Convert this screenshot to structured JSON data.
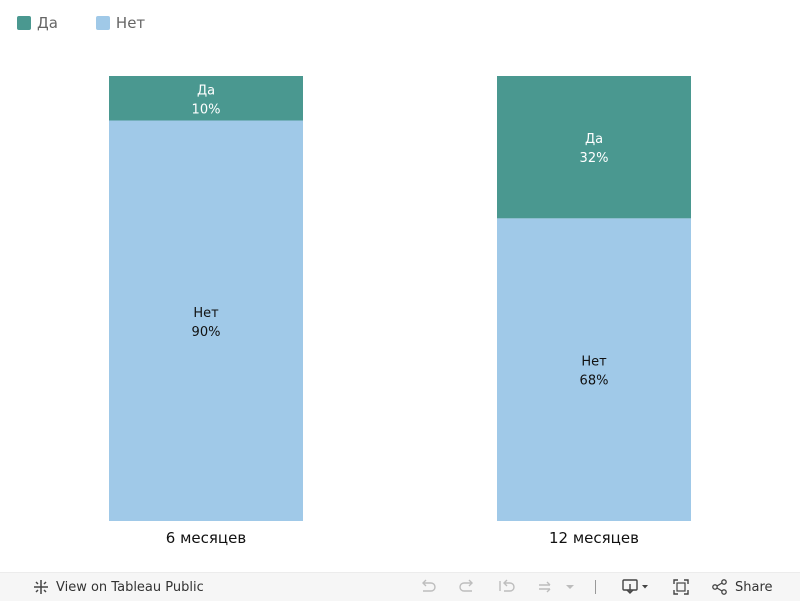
{
  "legend": {
    "items": [
      {
        "label": "Да",
        "color": "#4a9890"
      },
      {
        "label": "Нет",
        "color": "#a0c9e8"
      }
    ]
  },
  "chart_data": {
    "type": "bar",
    "stacked": true,
    "percent": true,
    "categories": [
      "6 месяцев",
      "12 месяцев"
    ],
    "series": [
      {
        "name": "Да",
        "values": [
          10,
          32
        ],
        "color": "#4a9890",
        "label_color": "#ffffff"
      },
      {
        "name": "Нет",
        "values": [
          90,
          68
        ],
        "color": "#a0c9e8",
        "label_color": "#111111"
      }
    ],
    "ylim": [
      0,
      100
    ],
    "grid": false,
    "legend_position": "top-left"
  },
  "toolbar": {
    "view_label": "View on Tableau Public",
    "share_label": "Share",
    "icons": [
      "tableau-logo-icon",
      "undo-icon",
      "redo-icon",
      "revert-icon",
      "refresh-icon",
      "dropdown-icon",
      "download-icon",
      "fullscreen-icon",
      "share-icon"
    ]
  }
}
